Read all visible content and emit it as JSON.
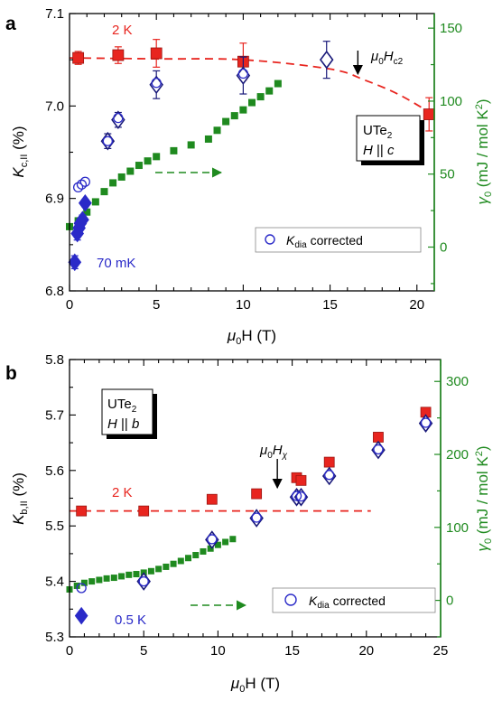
{
  "colors": {
    "red": "#e8251f",
    "red_edge": "#9a1410",
    "blue": "#2a2ac8",
    "navy": "#1a1a7a",
    "green": "#1f8a1f",
    "axis": "#000000"
  },
  "chart_data": [
    {
      "panel": "a",
      "type": "scatter",
      "xlabel": "μ0H (T)",
      "xlabel_parts": {
        "mu": "μ",
        "sub": "0",
        "rest": "H (T)"
      },
      "ylabel_left": "Kc,II (%)",
      "ylabel_left_parts": {
        "main": "K",
        "sub": "c,II",
        "rest": " (%)"
      },
      "ylabel_right": "γ0 (mJ / mol K2)",
      "ylabel_right_parts": {
        "main": "γ",
        "sub": "0",
        "rest": " (mJ / mol K",
        "sup": "2",
        "end": ")"
      },
      "xlim": [
        0,
        21
      ],
      "ylim_left": [
        6.8,
        7.1
      ],
      "ylim_right": [
        -30,
        160
      ],
      "xticks": [
        0,
        5,
        10,
        15,
        20
      ],
      "xtick_labels": [
        "0",
        "5",
        "10",
        "15",
        "20"
      ],
      "yticks_left": [
        6.8,
        6.9,
        7.0,
        7.1
      ],
      "ytick_labels_left": [
        "6.8",
        "6.9",
        "7.0",
        "7.1"
      ],
      "yticks_right": [
        0,
        50,
        100,
        150
      ],
      "ytick_labels_right": [
        "0",
        "50",
        "100",
        "150"
      ],
      "series": [
        {
          "role": "2K-red-squares",
          "marker": "square",
          "axis": "left",
          "x": [
            0.5,
            2.8,
            5.0,
            10.0,
            20.7
          ],
          "y": [
            7.052,
            7.055,
            7.057,
            7.048,
            6.991
          ],
          "err": [
            0.007,
            0.009,
            0.015,
            0.02,
            0.018
          ]
        },
        {
          "role": "70mK-blue-diamonds",
          "marker": "diamond",
          "axis": "left",
          "x": [
            0.3,
            0.45,
            0.55,
            0.62,
            0.75,
            0.9
          ],
          "y": [
            6.831,
            6.862,
            6.868,
            6.873,
            6.877,
            6.895
          ],
          "err": [
            0.007,
            0.007,
            0.006,
            0.005,
            0.005,
            0.004
          ]
        },
        {
          "role": "open-diamonds-error",
          "marker": "diamond-open",
          "axis": "left",
          "x": [
            2.2,
            2.8,
            5.0,
            10.0,
            14.8
          ],
          "y": [
            6.962,
            6.985,
            7.023,
            7.033,
            7.05
          ],
          "err": [
            0.008,
            0.008,
            0.015,
            0.02,
            0.02
          ]
        },
        {
          "role": "kdia-corrected-circles",
          "marker": "circle-open",
          "axis": "left",
          "x": [
            0.5,
            0.7,
            0.9,
            2.2,
            2.8,
            5.0,
            10.0
          ],
          "y": [
            6.912,
            6.915,
            6.918,
            6.962,
            6.987,
            7.025,
            7.035
          ]
        },
        {
          "role": "gamma0-green-squares",
          "marker": "square",
          "axis": "right",
          "x": [
            0.0,
            0.5,
            1.0,
            1.5,
            2.0,
            2.5,
            3.0,
            3.5,
            4.0,
            4.5,
            5.0,
            6.0,
            7.0,
            8.0,
            8.5,
            9.0,
            9.5,
            10.0,
            10.5,
            11.0,
            11.5,
            12.0
          ],
          "y": [
            14,
            18,
            24,
            31,
            38,
            44,
            48,
            52,
            56,
            59,
            62,
            66,
            70,
            74,
            80,
            86,
            90,
            94,
            99,
            103,
            107,
            112
          ]
        }
      ],
      "guide_curve": {
        "style": "dashed",
        "color": "red",
        "x": [
          0,
          5,
          10,
          15,
          17,
          19,
          21
        ],
        "y": [
          7.052,
          7.051,
          7.05,
          7.04,
          7.028,
          7.012,
          6.99
        ]
      },
      "annotations": {
        "panel_label": "a",
        "temp_2k": "2 K",
        "temp_70mk": "70 mK",
        "field_label": {
          "mu": "μ",
          "sub": "0",
          "main": "H",
          "sub2": "c2"
        },
        "field_x": 16.6,
        "sample_box": {
          "line1": "UTe",
          "line1_sub": "2",
          "line2_main": "H",
          "line2_rest": " || ",
          "line2_dir": "c"
        },
        "legend": {
          "main": "K",
          "sub": "dia",
          "rest": " corrected"
        }
      }
    },
    {
      "panel": "b",
      "type": "scatter",
      "xlabel": "μ0H (T)",
      "xlabel_parts": {
        "mu": "μ",
        "sub": "0",
        "rest": "H (T)"
      },
      "ylabel_left": "Kb,II (%)",
      "ylabel_left_parts": {
        "main": "K",
        "sub": "b,II",
        "rest": " (%)"
      },
      "ylabel_right": "γ0 (mJ / mol K2)",
      "ylabel_right_parts": {
        "main": "γ",
        "sub": "0",
        "rest": " (mJ / mol K",
        "sup": "2",
        "end": ")"
      },
      "xlim": [
        0,
        25
      ],
      "ylim_left": [
        5.3,
        5.8
      ],
      "ylim_right": [
        -50,
        330
      ],
      "xticks": [
        0,
        5,
        10,
        15,
        20,
        25
      ],
      "xtick_labels": [
        "0",
        "5",
        "10",
        "15",
        "20",
        "25"
      ],
      "yticks_left": [
        5.3,
        5.4,
        5.5,
        5.6,
        5.7,
        5.8
      ],
      "ytick_labels_left": [
        "5.3",
        "5.4",
        "5.5",
        "5.6",
        "5.7",
        "5.8"
      ],
      "yticks_right": [
        0,
        100,
        200,
        300
      ],
      "ytick_labels_right": [
        "0",
        "100",
        "200",
        "300"
      ],
      "series": [
        {
          "role": "2K-red-squares",
          "marker": "square",
          "axis": "left",
          "x": [
            0.8,
            5.0,
            9.6,
            12.6,
            15.3,
            15.6,
            17.5,
            20.8,
            24.0
          ],
          "y": [
            5.527,
            5.527,
            5.548,
            5.558,
            5.587,
            5.582,
            5.615,
            5.66,
            5.705
          ]
        },
        {
          "role": "0.5K-blue-diamond",
          "marker": "diamond",
          "axis": "left",
          "x": [
            0.8
          ],
          "y": [
            5.338
          ]
        },
        {
          "role": "open-diamonds",
          "marker": "diamond-open",
          "axis": "left",
          "x": [
            5.0,
            9.6,
            12.6,
            15.3,
            15.6,
            17.5,
            20.8,
            24.0
          ],
          "y": [
            5.4,
            5.475,
            5.514,
            5.552,
            5.552,
            5.59,
            5.637,
            5.685
          ]
        },
        {
          "role": "kdia-corrected-circles",
          "marker": "circle-open",
          "axis": "left",
          "x": [
            0.8,
            5.0,
            9.6,
            12.6,
            15.3,
            15.6,
            17.5,
            20.8,
            24.0
          ],
          "y": [
            5.388,
            5.4,
            5.476,
            5.515,
            5.554,
            5.553,
            5.592,
            5.638,
            5.686
          ]
        },
        {
          "role": "gamma0-green-squares",
          "marker": "square",
          "axis": "right",
          "x": [
            0.0,
            0.5,
            1.0,
            1.5,
            2.0,
            2.5,
            3.0,
            3.5,
            4.0,
            4.5,
            5.0,
            5.5,
            6.0,
            6.5,
            7.0,
            7.5,
            8.0,
            8.5,
            9.0,
            9.5,
            10.0,
            10.5,
            11.0
          ],
          "y": [
            15,
            20,
            24,
            26,
            28,
            30,
            31,
            33,
            35,
            36,
            38,
            40,
            43,
            46,
            50,
            54,
            58,
            62,
            67,
            71,
            76,
            80,
            84
          ]
        }
      ],
      "guide_line": {
        "style": "dashed",
        "color": "red",
        "x": [
          0,
          20.3
        ],
        "y": [
          5.527,
          5.527
        ]
      },
      "annotations": {
        "panel_label": "b",
        "temp_2k": "2 K",
        "temp_05k": "0.5 K",
        "field_label": {
          "mu": "μ",
          "sub": "0",
          "main": "H",
          "sub2": "χ"
        },
        "field_x": 14.0,
        "sample_box": {
          "line1": "UTe",
          "line1_sub": "2",
          "line2_main": "H",
          "line2_rest": " || ",
          "line2_dir": "b"
        },
        "legend": {
          "main": "K",
          "sub": "dia",
          "rest": " corrected"
        }
      }
    }
  ]
}
